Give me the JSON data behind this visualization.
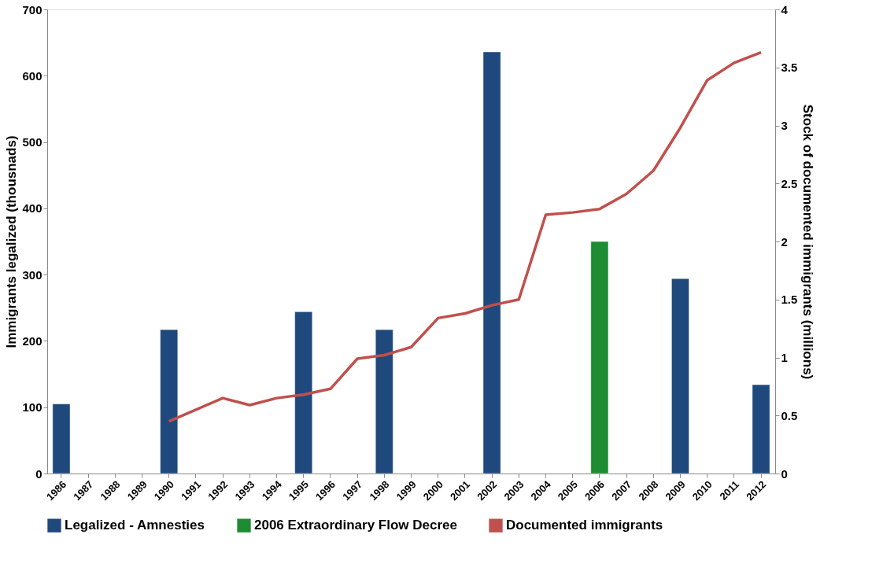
{
  "chart_data": {
    "type": "bar",
    "categories": [
      "1986",
      "1987",
      "1988",
      "1989",
      "1990",
      "1991",
      "1992",
      "1993",
      "1994",
      "1995",
      "1996",
      "1997",
      "1998",
      "1999",
      "2000",
      "2001",
      "2002",
      "2003",
      "2004",
      "2005",
      "2006",
      "2007",
      "2008",
      "2009",
      "2010",
      "2011",
      "2012"
    ],
    "ylabel": "Immigrants legalized (thousnads)",
    "y2label": "Stock of documented immigrants (millions)",
    "ylim": [
      0,
      700
    ],
    "yticks": [
      0,
      100,
      200,
      300,
      400,
      500,
      600,
      700
    ],
    "y2lim": [
      0,
      4
    ],
    "y2ticks": [
      0,
      0.5,
      1,
      1.5,
      2,
      2.5,
      3,
      3.5,
      4
    ],
    "grid": false,
    "legend": "bottom",
    "series": [
      {
        "name": "Legalized - Amnesties",
        "color": "#1f497d",
        "values": [
          105,
          null,
          null,
          null,
          217,
          null,
          null,
          null,
          null,
          244,
          null,
          null,
          217,
          null,
          null,
          null,
          636,
          null,
          null,
          null,
          null,
          null,
          null,
          294,
          null,
          null,
          134
        ]
      },
      {
        "name": "2006 Extraordinary Flow Decree",
        "color": "#1e8c32",
        "values": [
          null,
          null,
          null,
          null,
          null,
          null,
          null,
          null,
          null,
          null,
          null,
          null,
          null,
          null,
          null,
          null,
          null,
          null,
          null,
          null,
          350,
          null,
          null,
          null,
          null,
          null,
          null
        ]
      },
      {
        "name": "Documented immigrants",
        "type": "line",
        "axis": "y2",
        "color": "#c0504d",
        "values": [
          null,
          null,
          null,
          null,
          0.45,
          0.55,
          0.65,
          0.59,
          0.65,
          0.68,
          0.73,
          0.99,
          1.02,
          1.09,
          1.34,
          1.38,
          1.45,
          1.5,
          2.23,
          2.25,
          2.28,
          2.41,
          2.61,
          2.98,
          3.39,
          3.54,
          3.63
        ]
      }
    ]
  }
}
